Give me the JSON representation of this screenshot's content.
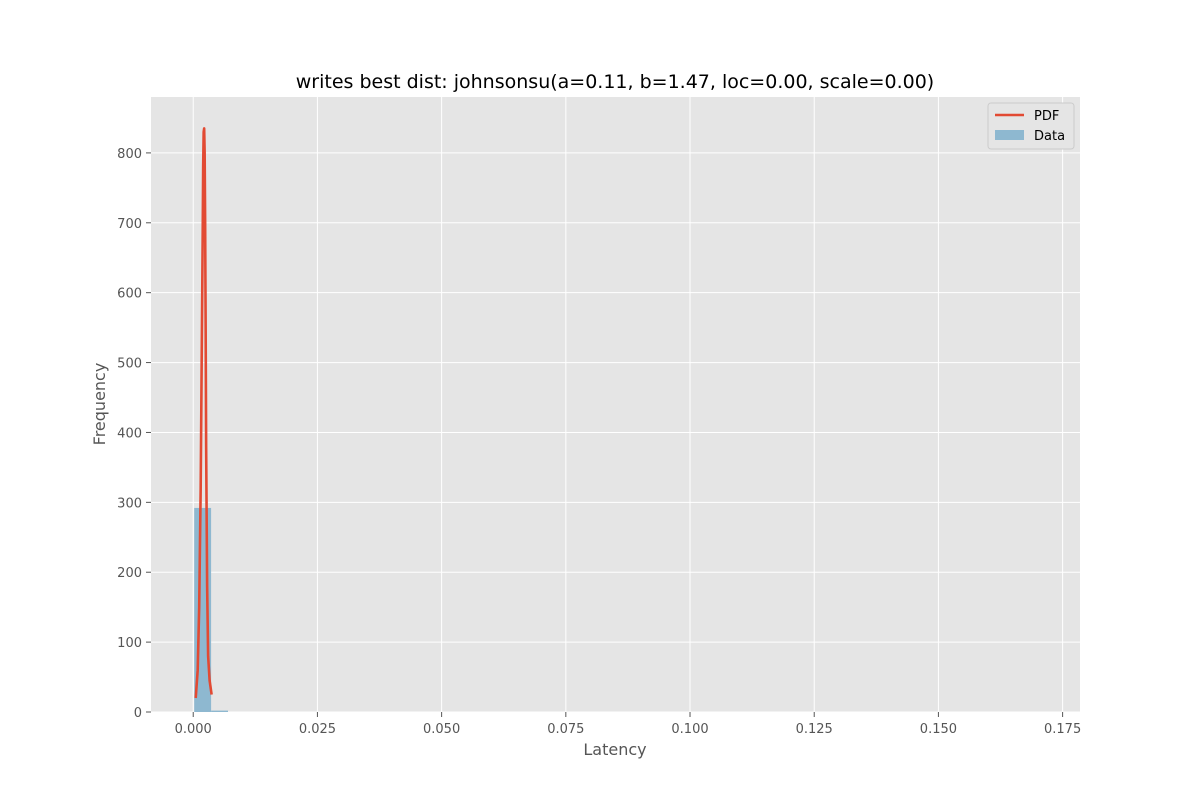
{
  "chart_data": {
    "type": "histogram+line",
    "title": "writes best dist: johnsonsu(a=0.11, b=1.47, loc=0.00, scale=0.00)",
    "xlabel": "Latency",
    "ylabel": "Frequency",
    "xlim": [
      -0.0085,
      0.1785
    ],
    "ylim": [
      0,
      880
    ],
    "x_ticks": [
      0.0,
      0.025,
      0.05,
      0.075,
      0.1,
      0.125,
      0.15,
      0.175
    ],
    "x_tick_labels": [
      "0.000",
      "0.025",
      "0.050",
      "0.075",
      "0.100",
      "0.125",
      "0.150",
      "0.175"
    ],
    "y_ticks": [
      0,
      100,
      200,
      300,
      400,
      500,
      600,
      700,
      800
    ],
    "y_tick_labels": [
      "0",
      "100",
      "200",
      "300",
      "400",
      "500",
      "600",
      "700",
      "800"
    ],
    "grid": true,
    "legend_placement": "top-right",
    "colors": {
      "pdf_line": "#e24a33",
      "data_bars": "#8eb8d0",
      "plot_background": "#e5e5e5",
      "grid": "#ffffff"
    },
    "series": [
      {
        "name": "PDF",
        "kind": "line",
        "x": [
          0.0005,
          0.0009,
          0.0012,
          0.0015,
          0.0017,
          0.0019,
          0.002,
          0.0021,
          0.0022,
          0.0023,
          0.0024,
          0.0025,
          0.0026,
          0.0028,
          0.003,
          0.0033,
          0.0037
        ],
        "y": [
          20,
          60,
          150,
          320,
          500,
          680,
          780,
          830,
          835,
          800,
          700,
          550,
          380,
          180,
          80,
          45,
          25
        ]
      },
      {
        "name": "Data",
        "kind": "histogram",
        "bins": [
          {
            "x0": 0.0002,
            "x1": 0.0036,
            "count": 292
          },
          {
            "x0": 0.0036,
            "x1": 0.007,
            "count": 2
          }
        ]
      }
    ]
  }
}
